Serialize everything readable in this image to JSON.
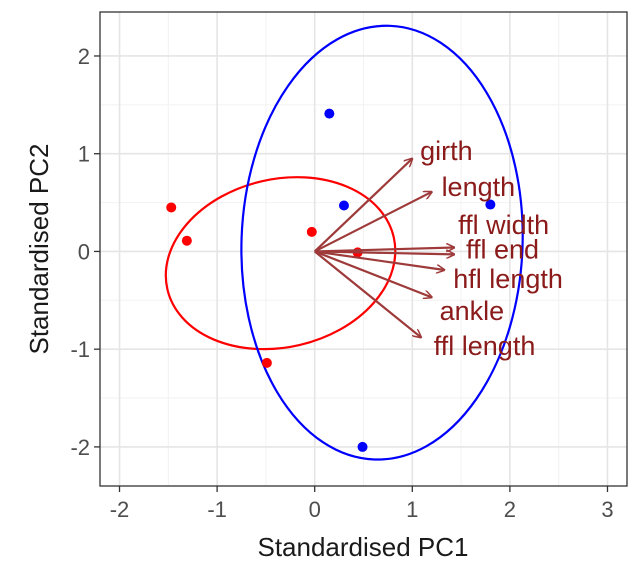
{
  "chart_data": {
    "type": "scatter",
    "title": "",
    "xlabel": "Standardised PC1",
    "ylabel": "Standardised PC2",
    "xlim": [
      -2.2,
      3.2
    ],
    "ylim": [
      -2.4,
      2.45
    ],
    "x_ticks": [
      -2,
      -1,
      0,
      1,
      2,
      3
    ],
    "y_ticks": [
      -2,
      -1,
      0,
      1,
      2
    ],
    "grid": true,
    "legend": "none",
    "series": [
      {
        "color": "#ff0000",
        "points": [
          {
            "x": -1.47,
            "y": 0.45
          },
          {
            "x": -1.31,
            "y": 0.11
          },
          {
            "x": -0.49,
            "y": -1.14
          },
          {
            "x": -0.03,
            "y": 0.2
          },
          {
            "x": 0.44,
            "y": -0.01
          }
        ],
        "ellipse": {
          "cx": -0.35,
          "cy": -0.12,
          "rx": 1.19,
          "ry": 0.86,
          "angle_deg": -13
        }
      },
      {
        "color": "#0000ff",
        "points": [
          {
            "x": 0.15,
            "y": 1.41
          },
          {
            "x": 0.3,
            "y": 0.47
          },
          {
            "x": 1.8,
            "y": 0.48
          },
          {
            "x": 0.49,
            "y": -2.0
          }
        ],
        "ellipse": {
          "cx": 0.69,
          "cy": 0.09,
          "rx": 1.44,
          "ry": 2.22,
          "angle_deg": 2
        }
      }
    ],
    "loadings": {
      "color": "#8b1a1a",
      "arrow_color": "#9e3a3a",
      "origin": [
        0,
        0
      ],
      "vectors": [
        {
          "name": "girth",
          "x": 1.0,
          "y": 0.95,
          "label_x": 1.08,
          "label_y": 1.03
        },
        {
          "name": "length",
          "x": 1.2,
          "y": 0.61,
          "label_x": 1.3,
          "label_y": 0.66
        },
        {
          "name": "ffl width",
          "x": 1.43,
          "y": 0.04,
          "label_x": 1.47,
          "label_y": 0.27
        },
        {
          "name": "ffl end",
          "x": 1.43,
          "y": -0.03,
          "label_x": 1.55,
          "label_y": 0.02
        },
        {
          "name": "hfl length",
          "x": 1.33,
          "y": -0.19,
          "label_x": 1.42,
          "label_y": -0.28
        },
        {
          "name": "ankle",
          "x": 1.2,
          "y": -0.47,
          "label_x": 1.28,
          "label_y": -0.61
        },
        {
          "name": "ffl length",
          "x": 1.09,
          "y": -0.88,
          "label_x": 1.22,
          "label_y": -0.97
        }
      ]
    }
  }
}
